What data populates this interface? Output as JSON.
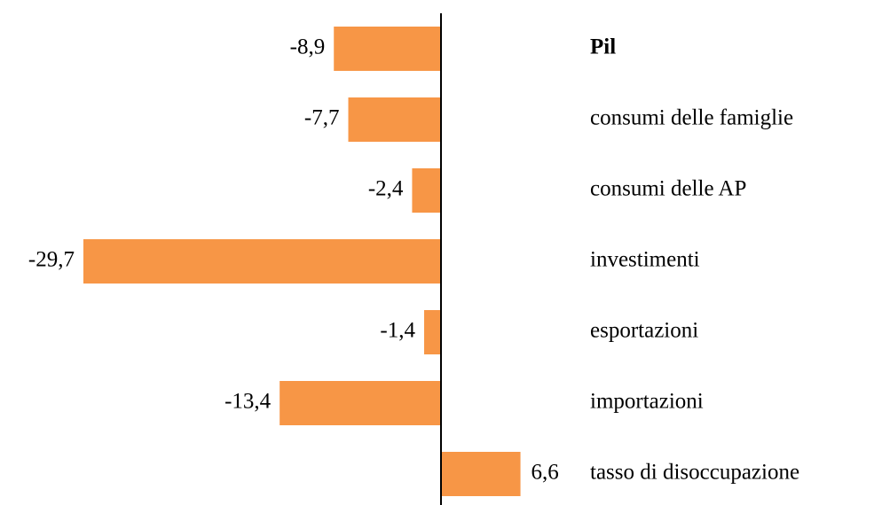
{
  "chart_data": {
    "type": "bar",
    "orientation": "horizontal",
    "categories": [
      "Pil",
      "consumi delle famiglie",
      "consumi delle AP",
      "investimenti",
      "esportazioni",
      "importazioni",
      "tasso di disoccupazione"
    ],
    "values": [
      -8.9,
      -7.7,
      -2.4,
      -29.7,
      -1.4,
      -13.4,
      6.6
    ],
    "value_labels": [
      "-8,9",
      "-7,7",
      "-2,4",
      "-29,7",
      "-1,4",
      "-13,4",
      "6,6"
    ],
    "color": "#f79646"
  }
}
